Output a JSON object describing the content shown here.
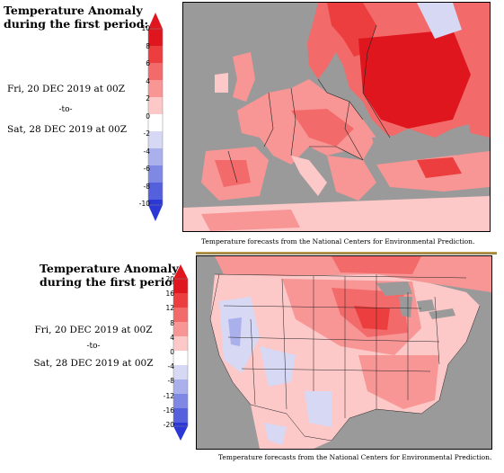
{
  "panels": [
    {
      "id": "europe",
      "title_line1": "Temperature Anomaly",
      "title_line2": "during the first period:",
      "start_date": "Fri, 20 DEC 2019 at 00Z",
      "to_label": "-to-",
      "end_date": "Sat, 28 DEC 2019 at 00Z",
      "colorbar_ticks": [
        "10",
        "8",
        "6",
        "4",
        "2",
        "0",
        "-2",
        "-4",
        "-6",
        "-8",
        "-10"
      ],
      "credit": "Temperature forecasts from the National Centers for Environmental Prediction."
    },
    {
      "id": "usa",
      "title_line1": "Temperature Anomaly",
      "title_line2": "during the first period:",
      "start_date": "Fri, 20 DEC 2019 at 00Z",
      "to_label": "-to-",
      "end_date": "Sat, 28 DEC 2019 at 00Z",
      "colorbar_ticks": [
        "20",
        "16",
        "12",
        "8",
        "4",
        "0",
        "-4",
        "-8",
        "-12",
        "-16",
        "-20"
      ],
      "credit": "Temperature forecasts from the National Centers for Environmental Prediction."
    }
  ],
  "colors": {
    "warm_5": "#e0161f",
    "warm_4": "#ec3e3e",
    "warm_3": "#f36a6a",
    "warm_2": "#f89595",
    "warm_1": "#fcc8c8",
    "neutral": "#ffffff",
    "cold_1": "#d6d8f4",
    "cold_2": "#aab0ec",
    "cold_3": "#7f88e3",
    "cold_4": "#5560dc",
    "cold_5": "#2b38d6",
    "water": "#9a9a9a",
    "border": "#222222"
  }
}
